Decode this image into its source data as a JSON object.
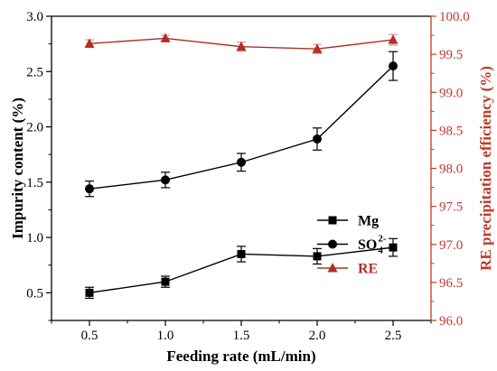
{
  "chart_data": {
    "type": "line",
    "xlabel": "Feeding rate (mL/min)",
    "ylabel": "Impurity content (%)",
    "ylabel_right": "RE precipitation efficiency (%)",
    "x": [
      0.5,
      1.0,
      1.5,
      2.0,
      2.5
    ],
    "xlim": [
      0.25,
      2.75
    ],
    "ylim": [
      0.25,
      3.0
    ],
    "ylim_right": [
      96.0,
      100.0
    ],
    "xticks": [
      "0.5",
      "1.0",
      "1.5",
      "2.0",
      "2.5"
    ],
    "yticks": [
      "0.5",
      "1.0",
      "1.5",
      "2.0",
      "2.5",
      "3.0"
    ],
    "yticks_right": [
      "96.0",
      "96.5",
      "97.0",
      "97.5",
      "98.0",
      "98.5",
      "99.0",
      "99.5",
      "100.0"
    ],
    "grid": false,
    "legend_position": "center-right",
    "right_axis_color": "#c0392b",
    "series": [
      {
        "name": "Mg",
        "axis": "left",
        "marker": "square",
        "color": "#000000",
        "errorbar_color": "#000000",
        "values": [
          0.5,
          0.6,
          0.85,
          0.83,
          0.91
        ],
        "errors": [
          0.05,
          0.05,
          0.07,
          0.07,
          0.08
        ]
      },
      {
        "name": "SO",
        "name_sub": "4",
        "name_sup": "2-",
        "axis": "left",
        "marker": "circle",
        "color": "#000000",
        "errorbar_color": "#000000",
        "values": [
          1.44,
          1.52,
          1.68,
          1.89,
          2.55
        ],
        "errors": [
          0.07,
          0.07,
          0.08,
          0.1,
          0.13
        ]
      },
      {
        "name": "RE",
        "axis": "right",
        "marker": "triangle",
        "color": "#b03028",
        "errorbar_color": "#e79191",
        "values": [
          99.64,
          99.71,
          99.6,
          99.57,
          99.69
        ],
        "errors": [
          0.05,
          0.04,
          0.06,
          0.06,
          0.07
        ]
      }
    ]
  }
}
